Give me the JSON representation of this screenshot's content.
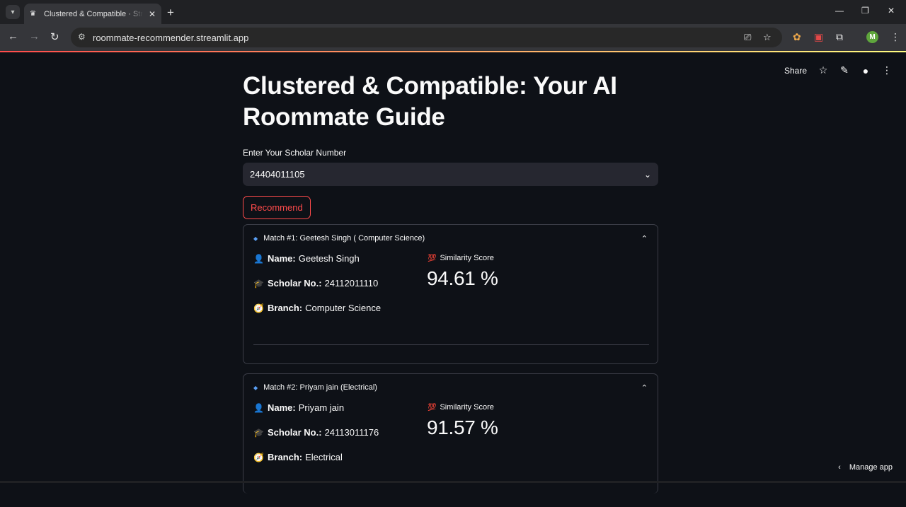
{
  "browser": {
    "tab_title": "Clustered & Compatible · Streamlit",
    "url": "roommate-recommender.streamlit.app",
    "profile_initial": "M",
    "icons": [
      "tab-search-icon",
      "new-tab-icon",
      "back-icon",
      "forward-icon",
      "reload-icon",
      "site-info-icon",
      "install-icon",
      "bookmark-star-icon",
      "extensions-icon",
      "menu-icon"
    ]
  },
  "streamlit_header": {
    "share_label": "Share"
  },
  "page": {
    "title": "Clustered & Compatible: Your AI Roommate Guide",
    "select_label": "Enter Your Scholar Number",
    "select_value": "24404011105",
    "recommend_label": "Recommend"
  },
  "matches": [
    {
      "header": "Match #1: Geetesh Singh ( Computer Science)",
      "name_label": "Name:",
      "name": "Geetesh Singh",
      "scholar_label": "Scholar No.:",
      "scholar_no": "24112011110",
      "branch_label": "Branch:",
      "branch": "Computer Science",
      "score_label": "Similarity Score",
      "score": "94.61 %"
    },
    {
      "header": "Match #2: Priyam jain (Electrical)",
      "name_label": "Name:",
      "name": "Priyam jain",
      "scholar_label": "Scholar No.:",
      "scholar_no": "24113011176",
      "branch_label": "Branch:",
      "branch": "Electrical",
      "score_label": "Similarity Score",
      "score": "91.57 %"
    }
  ],
  "footer": {
    "manage_app_label": "Manage app"
  },
  "colors": {
    "background": "#0e1117",
    "accent": "#ff4b4b",
    "widget_bg": "#262730",
    "border": "#3b3d47"
  }
}
